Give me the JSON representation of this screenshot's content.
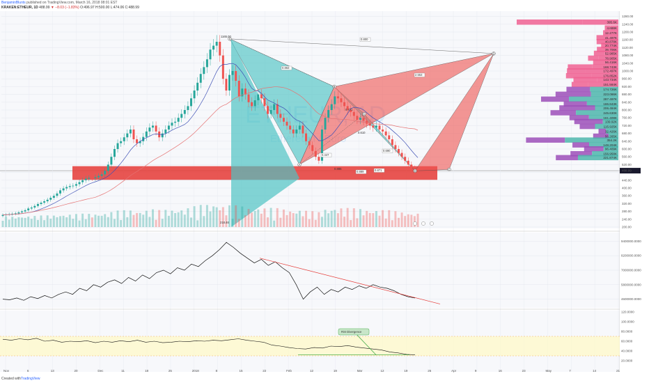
{
  "header": {
    "username": "BenjaminBlunts",
    "published_text": "published on TradingView.com, March 16, 2018 08:01 EST",
    "symbol_line": "KRAKEN:ETHEUR, 1D",
    "last_price": "488.99",
    "change": "▼ −8.03 (−1.83%)",
    "ohlc": "O:496.97 H:500.00 L:474.06 C:488.99"
  },
  "watermark": {
    "symbol": "ETHEUR, 1D",
    "name": "Ethereum / Euro"
  },
  "footer": {
    "created_with": "Created with",
    "brand": "TradingView"
  },
  "colors": {
    "up": "#26a69a",
    "down": "#ef5350",
    "ma_short": "#3f51b5",
    "ma_long": "#e57373",
    "pattern_teal": "#4fc3c3",
    "pattern_red": "#ef5350",
    "support_zone": "#e53935",
    "vp_buy": "#4db6ac",
    "vp_sell": "#f06292",
    "vp_purple": "#9c4fb8",
    "divergence_line": "#4caf50",
    "trend_line": "#e53935",
    "rsi_band": "#fff9c4"
  },
  "chart_data": [
    {
      "type": "candlestick",
      "title": "ETHEUR, 1D",
      "y_scale": "linear",
      "ylim": [
        200,
        1300
      ],
      "price_ticks": [
        200,
        240,
        280,
        320,
        360,
        400,
        440,
        480,
        520,
        560,
        600,
        640,
        680,
        720,
        760,
        800,
        840,
        880,
        920,
        960,
        1000,
        1040,
        1080,
        1120,
        1160,
        1200,
        1240,
        1280
      ],
      "price_labels": [
        "200.00",
        "240.00",
        "280.00",
        "320.00",
        "360.00",
        "400.00",
        "440.00",
        "480.00",
        "520.00",
        "560.00",
        "600.00",
        "640.00",
        "680.00",
        "720.00",
        "760.00",
        "800.00",
        "840.00",
        "880.00",
        "920.00",
        "960.00",
        "1000.00",
        "1040.00",
        "1080.00",
        "1120.00",
        "1160.00",
        "1200.00",
        "1240.00",
        "1280.00"
      ],
      "last_price_label": "488.99",
      "time_labels": [
        "Nov",
        "6",
        "13",
        "20",
        "Dec",
        "11",
        "18",
        "25",
        "2018",
        "8",
        "15",
        "22",
        "Feb",
        "12",
        "19",
        "Mar",
        "12",
        "19",
        "26",
        "Apr",
        "9",
        "16",
        "23",
        "May",
        "7",
        "14",
        "21"
      ],
      "closes": [
        262,
        264,
        266,
        268,
        270,
        275,
        280,
        286,
        295,
        300,
        308,
        318,
        325,
        332,
        340,
        350,
        360,
        372,
        388,
        398,
        405,
        410,
        412,
        420,
        430,
        440,
        448,
        452,
        450,
        455,
        462,
        470,
        488,
        520,
        560,
        600,
        630,
        640,
        660,
        680,
        700,
        650,
        630,
        640,
        662,
        690,
        710,
        720,
        690,
        660,
        680,
        700,
        720,
        735,
        740,
        760,
        780,
        800,
        820,
        860,
        900,
        940,
        985,
        1020,
        1060,
        1110,
        1130,
        1150,
        1080,
        960,
        900,
        980,
        1000,
        950,
        870,
        910,
        880,
        840,
        820,
        850,
        880,
        860,
        820,
        780,
        800,
        830,
        780,
        760,
        740,
        720,
        700,
        680,
        700,
        720,
        680,
        640,
        620,
        590,
        560,
        540,
        700,
        760,
        800,
        830,
        870,
        860,
        840,
        820,
        800,
        790,
        770,
        750,
        760,
        745,
        730,
        720,
        710,
        720,
        700,
        690,
        670,
        650,
        620,
        600,
        580,
        560,
        540,
        520,
        500,
        497,
        489
      ],
      "markers": [
        {
          "label": "1165.00",
          "price": 1165
        },
        {
          "label": "218.46",
          "price": 218.46
        }
      ],
      "moving_averages": [
        {
          "name": "MA short",
          "color": "#3f51b5"
        },
        {
          "name": "MA long",
          "color": "#e57373"
        }
      ],
      "harmonic_points": [
        {
          "label": "X",
          "price": 1165
        },
        {
          "label": "A",
          "price": 520
        },
        {
          "label": "B",
          "price": 920
        },
        {
          "label": "C",
          "price": 780
        },
        {
          "label": "D",
          "price": 488
        }
      ],
      "pattern_ratios": [
        "0.800",
        "0.863",
        "0.447",
        "0.889",
        "2.553",
        "0.690",
        "0.871"
      ],
      "secondary_ratio_labels": [
        "0.771",
        "0.610",
        "0.885"
      ],
      "target_points": [
        {
          "label": "D",
          "price": 1090
        },
        {
          "label": "C",
          "price": 495
        }
      ],
      "support_zone": {
        "low": 442,
        "high": 512
      }
    },
    {
      "type": "bar",
      "orientation": "horizontal",
      "title": "Volume profile",
      "bins": [
        {
          "label": "395.6K",
          "price": 1250
        },
        {
          "label": "4.688K",
          "price": 1220
        },
        {
          "label": "12.277K",
          "price": 1195
        },
        {
          "label": "41.497K",
          "price": 1170
        },
        {
          "label": "40.878K",
          "price": 1150
        },
        {
          "label": "20.774K",
          "price": 1130
        },
        {
          "label": "39.706K",
          "price": 1110
        },
        {
          "label": "52.985K",
          "price": 1090
        },
        {
          "label": "78.905K",
          "price": 1065
        },
        {
          "label": "56.416K",
          "price": 1045
        },
        {
          "label": "168.743K",
          "price": 1020
        },
        {
          "label": "172.497K",
          "price": 1000
        },
        {
          "label": "176.852K",
          "price": 975
        },
        {
          "label": "143.734K",
          "price": 955
        },
        {
          "label": "151.584K",
          "price": 930
        },
        {
          "label": "174.726K",
          "price": 905
        },
        {
          "label": "223.086K",
          "price": 880
        },
        {
          "label": "287.497K",
          "price": 855
        },
        {
          "label": "186.843K",
          "price": 830
        },
        {
          "label": "206.484K",
          "price": 810
        },
        {
          "label": "245.630K",
          "price": 785
        },
        {
          "label": "161.408K",
          "price": 760
        },
        {
          "label": "139.92K",
          "price": 740
        },
        {
          "label": "115.925K",
          "price": 715
        },
        {
          "label": "32.426K",
          "price": 690
        },
        {
          "label": "56.265K",
          "price": 665
        },
        {
          "label": "354.2K",
          "price": 645
        },
        {
          "label": "148.204K",
          "price": 620
        },
        {
          "label": "96.409K",
          "price": 600
        },
        {
          "label": "156.958K",
          "price": 575
        },
        {
          "label": "221.874K",
          "price": 555
        }
      ],
      "values": [
        395.6,
        4.688,
        12.277,
        41.497,
        40.878,
        20.774,
        39.706,
        52.985,
        78.905,
        56.416,
        168.743,
        172.497,
        176.852,
        143.734,
        151.584,
        174.726,
        223.086,
        287.497,
        186.843,
        206.484,
        245.63,
        161.408,
        139.92,
        115.925,
        32.426,
        56.265,
        354.2,
        148.204,
        96.409,
        156.958,
        221.874
      ]
    },
    {
      "type": "line",
      "title": "OBV",
      "ylim": [
        4000000,
        10000000
      ],
      "tick_labels": [
        "9400000.0000",
        "8200000.0000",
        "7000000.0000",
        "5800000.0000",
        "4600000.0000"
      ],
      "values": [
        4600000,
        4550000,
        4700000,
        4500000,
        4800000,
        4650000,
        4900000,
        4700000,
        5000000,
        5200000,
        5000000,
        5500000,
        5300000,
        5800000,
        5600000,
        6000000,
        6200000,
        5900000,
        6400000,
        6100000,
        6600000,
        6300000,
        6800000,
        7000000,
        6700000,
        7200000,
        7000000,
        7500000,
        7300000,
        7800000,
        8200000,
        8700000,
        9300000,
        8900000,
        8400000,
        8000000,
        7600000,
        7900000,
        7400000,
        7700000,
        7200000,
        6800000,
        5800000,
        4600000,
        5200000,
        5600000,
        5000000,
        5400000,
        5200000,
        5600000,
        5400000,
        5700000,
        5500000,
        5800000,
        5600000,
        5500000,
        5300000,
        5000000,
        4800000,
        4700000
      ]
    },
    {
      "type": "line",
      "title": "RSI",
      "ylim": [
        0,
        120
      ],
      "tick_labels": [
        "120.0000",
        "100.0000",
        "80.0000",
        "60.0000",
        "40.0000",
        "20.0000"
      ],
      "values": [
        64,
        62,
        65,
        63,
        66,
        60,
        62,
        58,
        60,
        59,
        61,
        57,
        60,
        58,
        61,
        59,
        62,
        58,
        60,
        57,
        58,
        60,
        59,
        61,
        60,
        62,
        61,
        63,
        65,
        62,
        60,
        58,
        52,
        50,
        47,
        45,
        44,
        47,
        46,
        50,
        49,
        51,
        48,
        46,
        44,
        42,
        38,
        36,
        33,
        32
      ],
      "annotation": "RSI Divergence",
      "band": [
        30,
        70
      ]
    }
  ]
}
